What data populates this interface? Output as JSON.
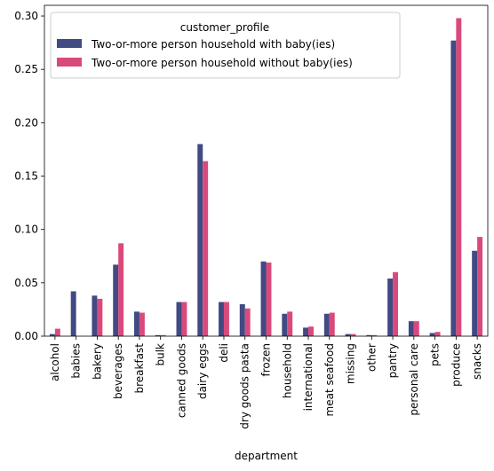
{
  "chart_data": {
    "type": "bar",
    "title": "",
    "xlabel": "department",
    "ylabel": "",
    "ylim": [
      0,
      0.31
    ],
    "yticks": [
      "0.00",
      "0.05",
      "0.10",
      "0.15",
      "0.20",
      "0.25",
      "0.30"
    ],
    "grid": false,
    "legend": {
      "title": "customer_profile",
      "placement": "upper-center"
    },
    "categories": [
      "alcohol",
      "babies",
      "bakery",
      "beverages",
      "breakfast",
      "bulk",
      "canned goods",
      "dairy eggs",
      "deli",
      "dry goods pasta",
      "frozen",
      "household",
      "international",
      "meat seafood",
      "missing",
      "other",
      "pantry",
      "personal care",
      "pets",
      "produce",
      "snacks"
    ],
    "series": [
      {
        "name": "Two-or-more person household with baby(ies)",
        "color": "#414a82",
        "values": [
          0.002,
          0.042,
          0.038,
          0.067,
          0.023,
          0.001,
          0.032,
          0.18,
          0.032,
          0.03,
          0.07,
          0.021,
          0.008,
          0.021,
          0.002,
          0.001,
          0.054,
          0.014,
          0.003,
          0.277,
          0.08
        ]
      },
      {
        "name": "Two-or-more person household without baby(ies)",
        "color": "#d94a7c",
        "values": [
          0.007,
          0.0,
          0.035,
          0.087,
          0.022,
          0.001,
          0.032,
          0.164,
          0.032,
          0.026,
          0.069,
          0.023,
          0.009,
          0.022,
          0.002,
          0.001,
          0.06,
          0.014,
          0.004,
          0.298,
          0.093
        ]
      }
    ]
  }
}
